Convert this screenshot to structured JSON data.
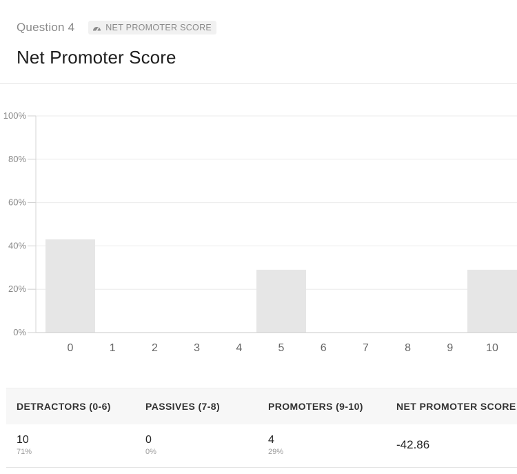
{
  "header": {
    "question_label": "Question 4",
    "badge_label": "NET PROMOTER SCORE",
    "badge_icon": "gauge-icon",
    "title": "Net Promoter Score"
  },
  "chart_data": {
    "type": "bar",
    "categories": [
      "0",
      "1",
      "2",
      "3",
      "4",
      "5",
      "6",
      "7",
      "8",
      "9",
      "10"
    ],
    "values": [
      43,
      0,
      0,
      0,
      0,
      29,
      0,
      0,
      0,
      0,
      29
    ],
    "y_ticks": [
      "0%",
      "20%",
      "40%",
      "60%",
      "80%",
      "100%"
    ],
    "ylim": [
      0,
      100
    ],
    "bar_color": "#e6e6e6",
    "grid": true
  },
  "summary": {
    "columns": [
      "DETRACTORS (0-6)",
      "PASSIVES (7-8)",
      "PROMOTERS (9-10)",
      "NET PROMOTER SCORE"
    ],
    "detractors": {
      "count": "10",
      "percent": "71%"
    },
    "passives": {
      "count": "0",
      "percent": "0%"
    },
    "promoters": {
      "count": "4",
      "percent": "29%"
    },
    "nps": "-42.86"
  }
}
